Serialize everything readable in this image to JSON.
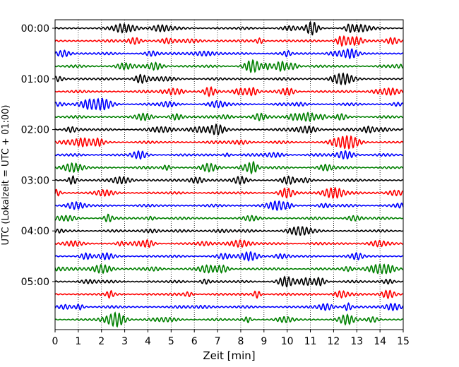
{
  "chart_data": {
    "type": "line",
    "title": "",
    "xlabel": "Zeit  [min]",
    "ylabel": "UTC (Lokalzeit = UTC + 01:00)",
    "xlim": [
      0,
      15
    ],
    "x_ticks": [
      "0",
      "1",
      "2",
      "3",
      "4",
      "5",
      "6",
      "7",
      "8",
      "9",
      "10",
      "11",
      "12",
      "13",
      "14",
      "15"
    ],
    "y_tick_labels": [
      "00:00",
      "01:00",
      "02:00",
      "03:00",
      "04:00",
      "05:00"
    ],
    "trace_count": 24,
    "traces_per_hour": 4,
    "trace_interval_min": 15,
    "trace_colors": [
      "#000000",
      "#ff0000",
      "#0000ff",
      "#008000"
    ],
    "grid": "vertical dotted at each minute"
  }
}
